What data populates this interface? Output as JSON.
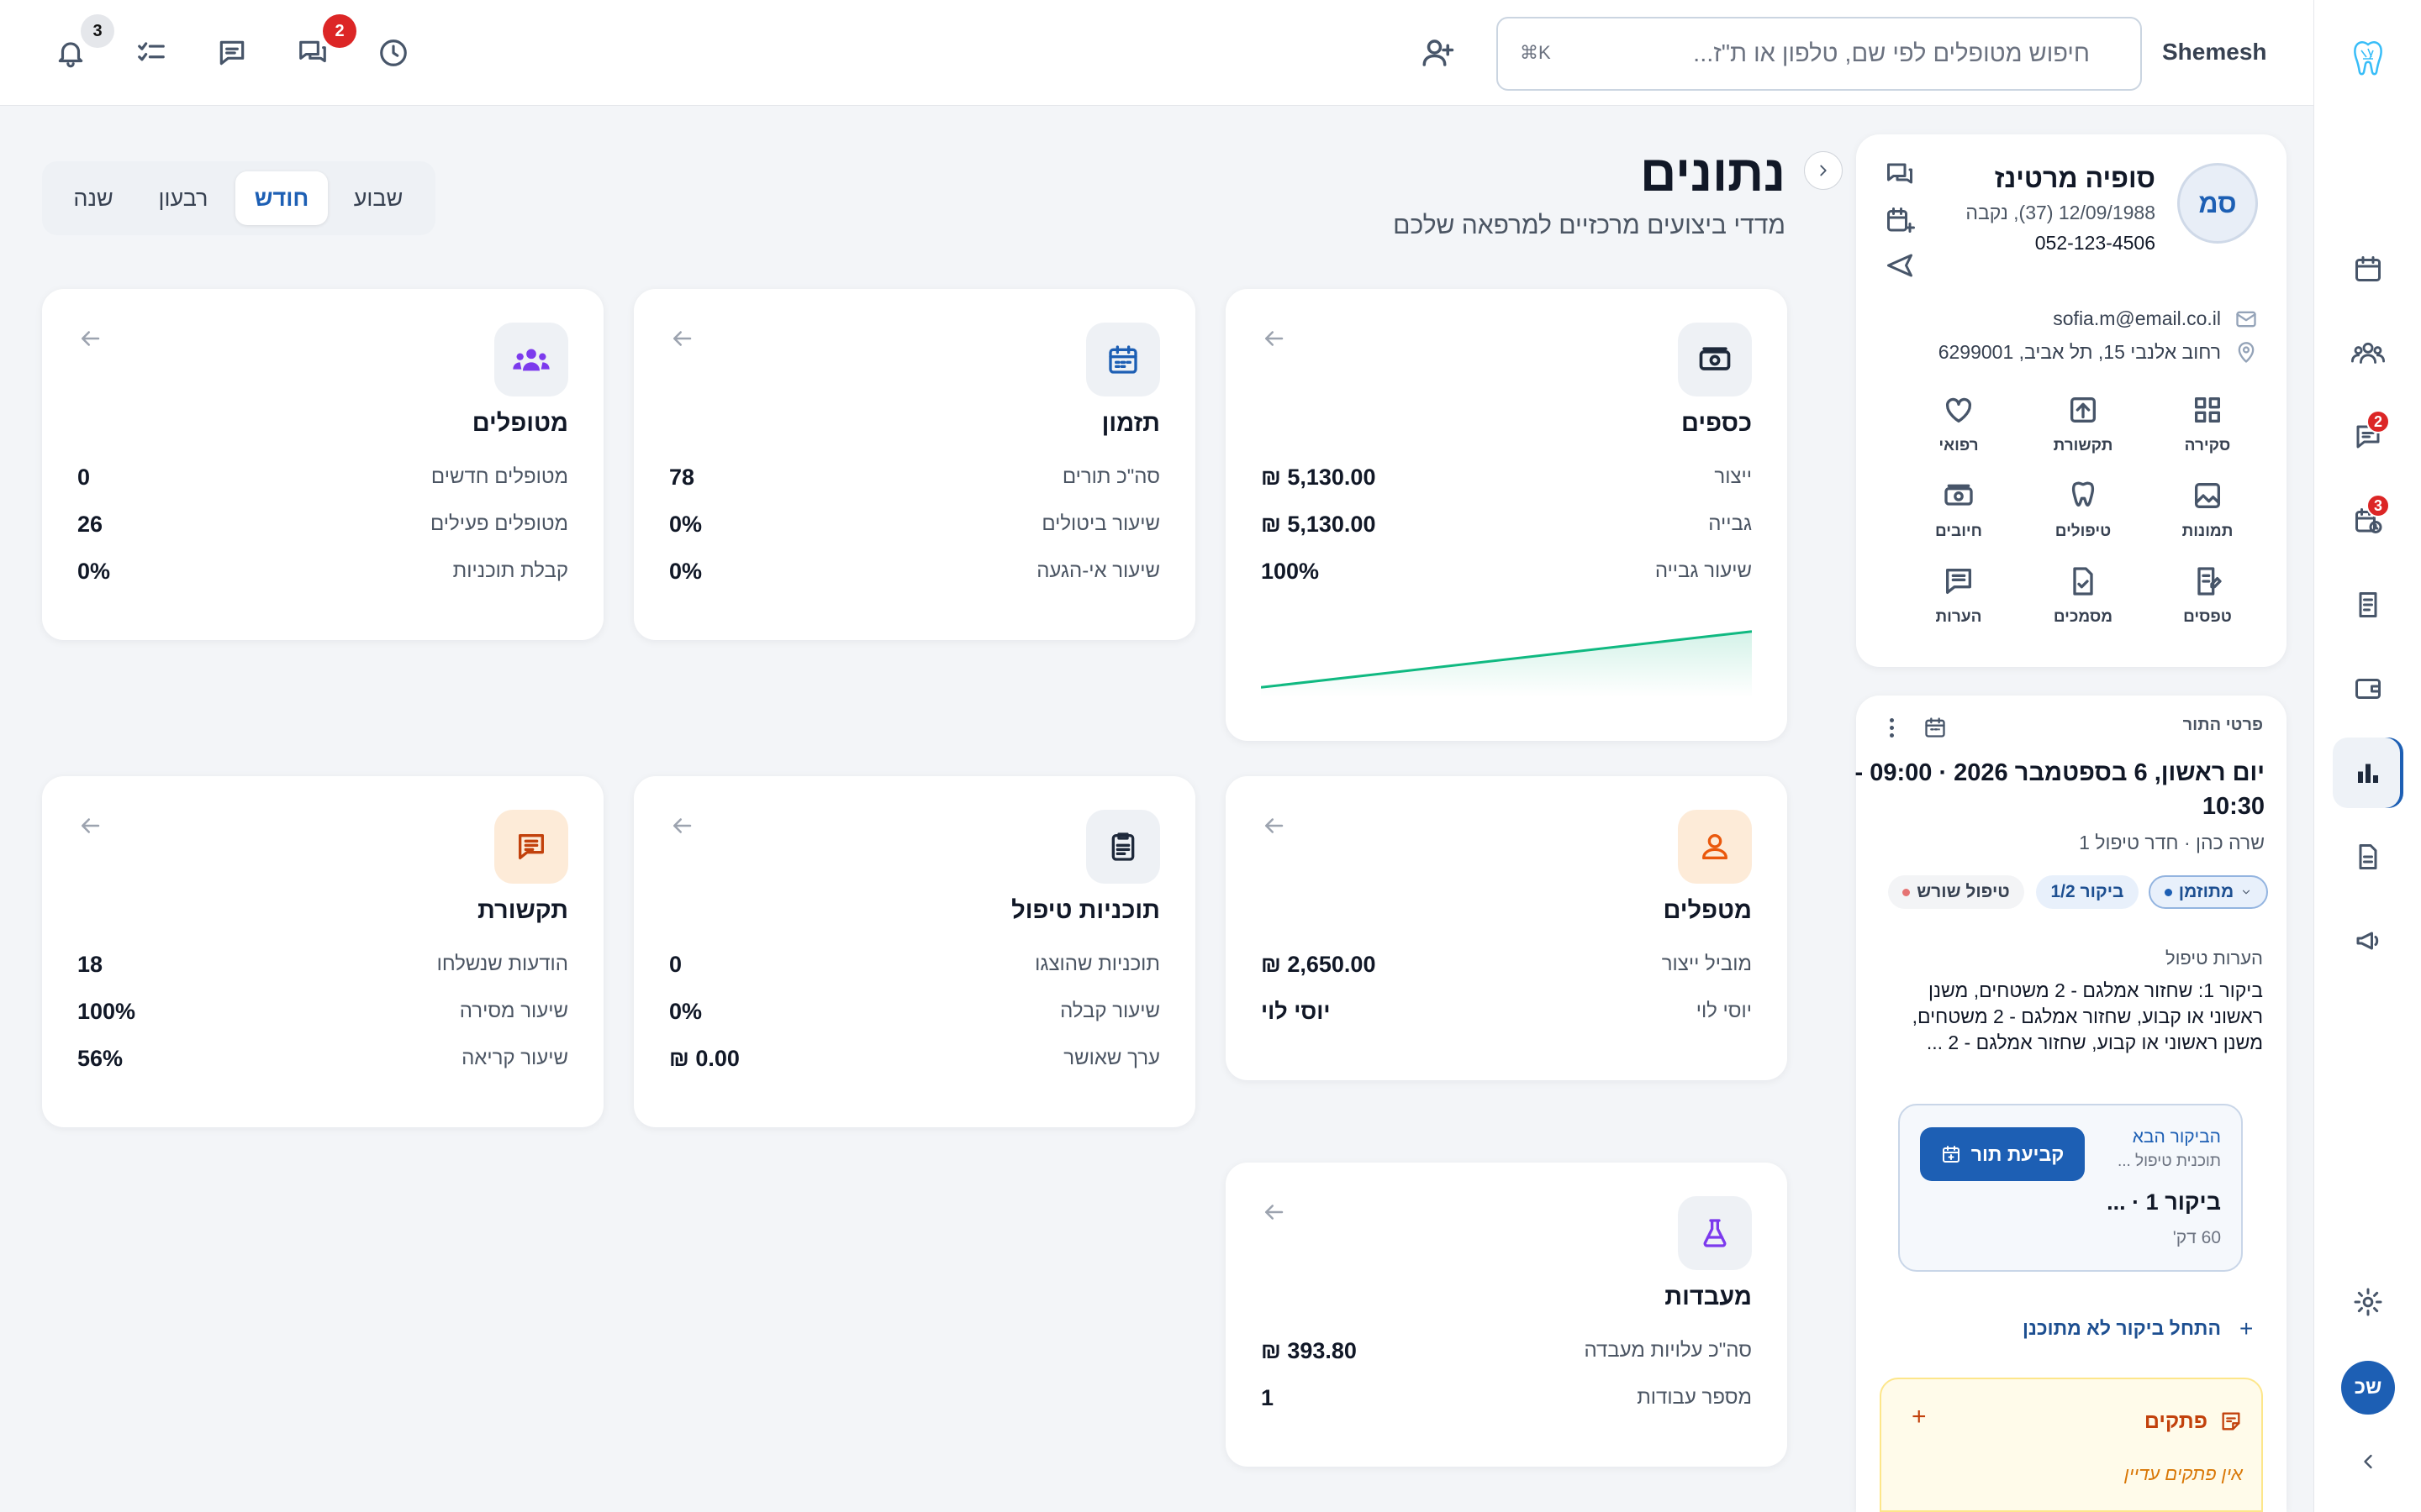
{
  "app": {
    "brand_initials": "שכ",
    "clinic_name": "Shemesh"
  },
  "topbar": {
    "notifications_count": "3",
    "messages_count": "2",
    "search_placeholder": "חיפוש מטופלים לפי שם, טלפון או ת\"ז...",
    "search_shortcut": "⌘K"
  },
  "rail": {
    "messages_badge": "2",
    "appointments_badge": "3",
    "user_initials": "שכ"
  },
  "page": {
    "title": "נתונים",
    "subtitle": "מדדי ביצועים מרכזיים למרפאה שלכם",
    "periods": [
      "שבוע",
      "חודש",
      "רבעון",
      "שנה"
    ],
    "selected_period": "חודש"
  },
  "cards": {
    "money": {
      "title": "כספים",
      "rows": [
        {
          "label": "ייצור",
          "value": "₪ 5,130.00"
        },
        {
          "label": "גבייה",
          "value": "₪ 5,130.00"
        },
        {
          "label": "שיעור גבייה",
          "value": "100%"
        }
      ],
      "trend": [
        0.05,
        0.95
      ]
    },
    "scheduling": {
      "title": "תזמון",
      "rows": [
        {
          "label": "סה\"כ תורים",
          "value": "78"
        },
        {
          "label": "שיעור ביטולים",
          "value": "0%"
        },
        {
          "label": "שיעור אי-הגעה",
          "value": "0%"
        }
      ]
    },
    "patients": {
      "title": "מטופלים",
      "rows": [
        {
          "label": "מטופלים חדשים",
          "value": "0"
        },
        {
          "label": "מטופלים פעילים",
          "value": "26"
        },
        {
          "label": "קבלת תוכניות",
          "value": "0%"
        }
      ]
    },
    "providers": {
      "title": "מטפלים",
      "rows": [
        {
          "label": "מוביל ייצור",
          "value": "₪ 2,650.00"
        },
        {
          "label": "יוסי לוי",
          "value": "יוסי לוי"
        }
      ]
    },
    "plans": {
      "title": "תוכניות טיפול",
      "rows": [
        {
          "label": "תוכניות שהוצגו",
          "value": "0"
        },
        {
          "label": "שיעור קבלה",
          "value": "0%"
        },
        {
          "label": "ערך שאושר",
          "value": "₪ 0.00"
        }
      ]
    },
    "communication": {
      "title": "תקשורת",
      "rows": [
        {
          "label": "הודעות שנשלחו",
          "value": "18"
        },
        {
          "label": "שיעור מסירה",
          "value": "100%"
        },
        {
          "label": "שיעור קריאה",
          "value": "56%"
        }
      ]
    },
    "labs": {
      "title": "מעבדות",
      "rows": [
        {
          "label": "סה\"כ עלויות מעבדה",
          "value": "₪ 393.80"
        },
        {
          "label": "מספר עבודות",
          "value": "1"
        }
      ]
    }
  },
  "patient": {
    "initials": "סמ",
    "name": "סופיה מרטינז",
    "details": "12/09/1988 (37), נקבה",
    "phone": "052-123-4506",
    "email": "sofia.m@email.co.il",
    "address": "רחוב אלנבי 15, תל אביב, 6299001",
    "tiles": [
      "סקירה",
      "תקשורת",
      "רפואי",
      "תמונות",
      "טיפולים",
      "חיובים",
      "טפסים",
      "מסמכים",
      "הערות"
    ]
  },
  "appointment": {
    "section_label": "פרטי התור",
    "date_line1": "יום ראשון, 6 בספטמבר 2026 · 09:00 -",
    "date_line2": "10:30",
    "provider_room": "שרה כהן · חדר טיפול 1",
    "status": "מתוזמן",
    "visit": "ביקור 1/2",
    "treatment": "טיפול שורש",
    "notes_label": "הערות טיפול",
    "notes_text": "ביקור 1: שחזור אמלגם - 2 משטחים, משנן ראשוני או קבוע, שחזור אמלגם - 2 משטחים, משנן ראשוני או קבוע, שחזור אמלגם - 2 ...",
    "next_label": "הביקור הבא",
    "next_plan": "תוכנית טיפול ...",
    "next_visit": "ביקור 1 · ...",
    "next_duration": "60 דק'",
    "book_button": "קביעת תור",
    "start_unscheduled": "התחל ביקור לא מתוכנן",
    "notes_section": "פתקים",
    "no_notes": "אין פתקים עדיין"
  },
  "colors": {
    "accent": "#1d5fb4",
    "danger": "#dc2626",
    "green": "#10b981"
  }
}
